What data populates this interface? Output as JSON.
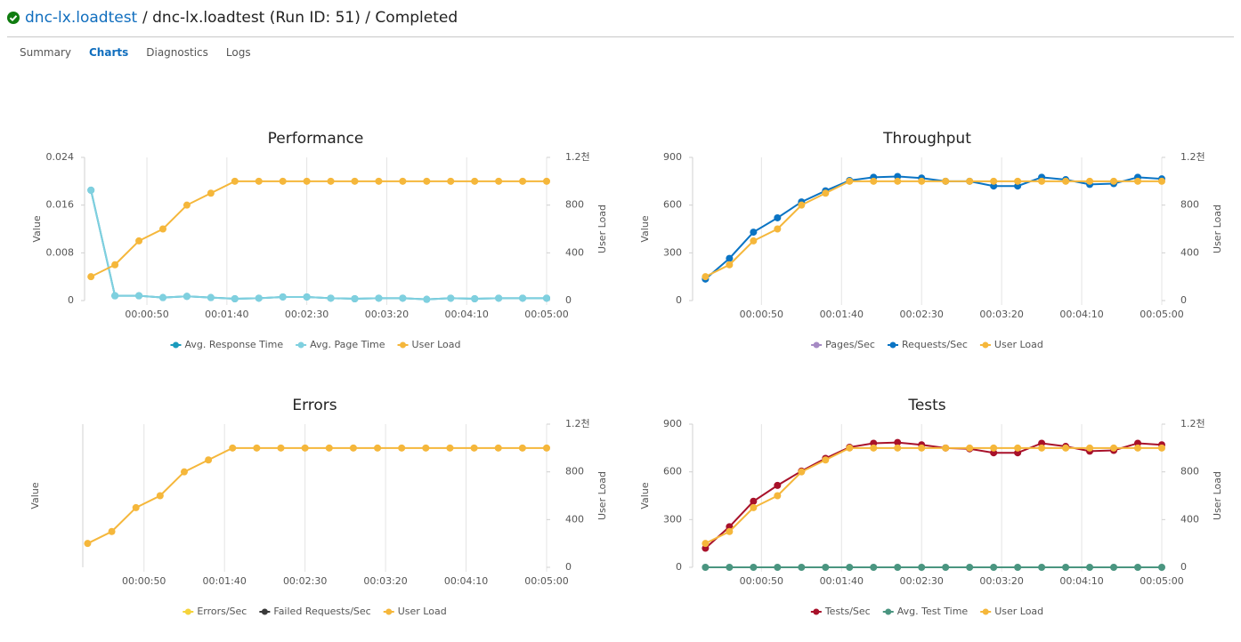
{
  "header": {
    "project": "dnc-lx.loadtest",
    "path": "/ dnc-lx.loadtest (Run ID: 51) / Completed"
  },
  "tabs": [
    "Summary",
    "Charts",
    "Diagnostics",
    "Logs"
  ],
  "active_tab": 1,
  "chart_data": [
    {
      "type": "line",
      "title": "Performance",
      "ylabel": "Value",
      "y2label": "User Load",
      "x": [
        15,
        30,
        45,
        60,
        75,
        90,
        105,
        120,
        135,
        150,
        165,
        180,
        195,
        210,
        225,
        240,
        255,
        270,
        285,
        300
      ],
      "xlim": [
        11,
        300
      ],
      "xticks": [
        {
          "value": 50,
          "label": "00:00:50"
        },
        {
          "value": 100,
          "label": "00:01:40"
        },
        {
          "value": 150,
          "label": "00:02:30"
        },
        {
          "value": 200,
          "label": "00:03:20"
        },
        {
          "value": 250,
          "label": "00:04:10"
        },
        {
          "value": 300,
          "label": "00:05:00"
        }
      ],
      "ylim": [
        0,
        0.024
      ],
      "yticks": [
        0,
        0.008,
        0.016,
        0.024
      ],
      "y2lim": [
        0,
        1200
      ],
      "y2ticks": [
        0,
        400,
        800,
        {
          "value": 1200,
          "label": "1.2천"
        }
      ],
      "series": [
        {
          "name": "Avg. Response Time",
          "color": "#1a9bbd",
          "values": [
            0.0185,
            0.0008,
            0.0008,
            0.0005,
            0.0007,
            0.0005,
            0.0003,
            0.0004,
            0.0006,
            0.0006,
            0.0004,
            0.0003,
            0.0004,
            0.0004,
            0.0002,
            0.0004,
            0.0003,
            0.0004,
            0.0004,
            0.0004
          ]
        },
        {
          "name": "Avg. Page Time",
          "color": "#7fd0df",
          "values": [
            0.0185,
            0.0008,
            0.0008,
            0.0005,
            0.0007,
            0.0005,
            0.0003,
            0.0004,
            0.0006,
            0.0006,
            0.0004,
            0.0003,
            0.0004,
            0.0004,
            0.0002,
            0.0004,
            0.0003,
            0.0004,
            0.0004,
            0.0004
          ]
        },
        {
          "name": "User Load",
          "color": "#f5b73b",
          "axis": "y2",
          "values": [
            200,
            300,
            500,
            600,
            800,
            900,
            1000,
            1000,
            1000,
            1000,
            1000,
            1000,
            1000,
            1000,
            1000,
            1000,
            1000,
            1000,
            1000,
            1000
          ]
        }
      ]
    },
    {
      "type": "line",
      "title": "Throughput",
      "ylabel": "Value",
      "y2label": "User Load",
      "x": [
        15,
        30,
        45,
        60,
        75,
        90,
        105,
        120,
        135,
        150,
        165,
        180,
        195,
        210,
        225,
        240,
        255,
        270,
        285,
        300
      ],
      "xlim": [
        7,
        300
      ],
      "xticks": [
        {
          "value": 50,
          "label": "00:00:50"
        },
        {
          "value": 100,
          "label": "00:01:40"
        },
        {
          "value": 150,
          "label": "00:02:30"
        },
        {
          "value": 200,
          "label": "00:03:20"
        },
        {
          "value": 250,
          "label": "00:04:10"
        },
        {
          "value": 300,
          "label": "00:05:00"
        }
      ],
      "ylim": [
        0,
        900
      ],
      "yticks": [
        0,
        300,
        600,
        900
      ],
      "y2lim": [
        0,
        1200
      ],
      "y2ticks": [
        0,
        400,
        800,
        {
          "value": 1200,
          "label": "1.2천"
        }
      ],
      "series": [
        {
          "name": "Pages/Sec",
          "color": "#a68ac4",
          "values": [
            null,
            null,
            null,
            null,
            null,
            null,
            null,
            null,
            null,
            null,
            null,
            null,
            null,
            null,
            null,
            null,
            null,
            null,
            null,
            null
          ]
        },
        {
          "name": "Requests/Sec",
          "color": "#0a74c4",
          "values": [
            135,
            265,
            430,
            520,
            620,
            690,
            755,
            775,
            780,
            770,
            750,
            750,
            720,
            720,
            775,
            760,
            730,
            735,
            775,
            765
          ]
        },
        {
          "name": "User Load",
          "color": "#f5b73b",
          "axis": "y2",
          "values": [
            200,
            300,
            500,
            600,
            800,
            900,
            1000,
            1000,
            1000,
            1000,
            1000,
            1000,
            1000,
            1000,
            1000,
            1000,
            1000,
            1000,
            1000,
            1000
          ]
        }
      ]
    },
    {
      "type": "line",
      "title": "Errors",
      "ylabel": "Value",
      "y2label": "User Load",
      "x": [
        15,
        30,
        45,
        60,
        75,
        90,
        105,
        120,
        135,
        150,
        165,
        180,
        195,
        210,
        225,
        240,
        255,
        270,
        285,
        300
      ],
      "xlim": [
        12,
        300
      ],
      "xticks": [
        {
          "value": 50,
          "label": "00:00:50"
        },
        {
          "value": 100,
          "label": "00:01:40"
        },
        {
          "value": 150,
          "label": "00:02:30"
        },
        {
          "value": 200,
          "label": "00:03:20"
        },
        {
          "value": 250,
          "label": "00:04:10"
        },
        {
          "value": 300,
          "label": "00:05:00"
        }
      ],
      "y2lim": [
        0,
        1200
      ],
      "y2ticks": [
        0,
        400,
        800,
        {
          "value": 1200,
          "label": "1.2천"
        }
      ],
      "series": [
        {
          "name": "Errors/Sec",
          "color": "#f5d33b",
          "values": [
            null,
            null,
            null,
            null,
            null,
            null,
            null,
            null,
            null,
            null,
            null,
            null,
            null,
            null,
            null,
            null,
            null,
            null,
            null,
            null
          ]
        },
        {
          "name": "Failed Requests/Sec",
          "color": "#3a3a3a",
          "values": [
            null,
            null,
            null,
            null,
            null,
            null,
            null,
            null,
            null,
            null,
            null,
            null,
            null,
            null,
            null,
            null,
            null,
            null,
            null,
            null
          ]
        },
        {
          "name": "User Load",
          "color": "#f5b73b",
          "axis": "y2",
          "values": [
            200,
            300,
            500,
            600,
            800,
            900,
            1000,
            1000,
            1000,
            1000,
            1000,
            1000,
            1000,
            1000,
            1000,
            1000,
            1000,
            1000,
            1000,
            1000
          ]
        }
      ]
    },
    {
      "type": "line",
      "title": "Tests",
      "ylabel": "Value",
      "y2label": "User Load",
      "x": [
        15,
        30,
        45,
        60,
        75,
        90,
        105,
        120,
        135,
        150,
        165,
        180,
        195,
        210,
        225,
        240,
        255,
        270,
        285,
        300
      ],
      "xlim": [
        7,
        300
      ],
      "xticks": [
        {
          "value": 50,
          "label": "00:00:50"
        },
        {
          "value": 100,
          "label": "00:01:40"
        },
        {
          "value": 150,
          "label": "00:02:30"
        },
        {
          "value": 200,
          "label": "00:03:20"
        },
        {
          "value": 250,
          "label": "00:04:10"
        },
        {
          "value": 300,
          "label": "00:05:00"
        }
      ],
      "ylim": [
        0,
        900
      ],
      "yticks": [
        0,
        300,
        600,
        900
      ],
      "y2lim": [
        0,
        1200
      ],
      "y2ticks": [
        0,
        400,
        800,
        {
          "value": 1200,
          "label": "1.2천"
        }
      ],
      "series": [
        {
          "name": "Tests/Sec",
          "color": "#a8112a",
          "values": [
            120,
            255,
            415,
            515,
            605,
            685,
            755,
            780,
            785,
            770,
            750,
            745,
            720,
            720,
            780,
            760,
            730,
            735,
            780,
            770
          ]
        },
        {
          "name": "Avg. Test Time",
          "color": "#4a9580",
          "values": [
            0,
            0,
            0,
            0,
            0,
            0,
            0,
            0,
            0,
            0,
            0,
            0,
            0,
            0,
            0,
            0,
            0,
            0,
            0,
            0
          ]
        },
        {
          "name": "User Load",
          "color": "#f5b73b",
          "axis": "y2",
          "values": [
            200,
            300,
            500,
            600,
            800,
            900,
            1000,
            1000,
            1000,
            1000,
            1000,
            1000,
            1000,
            1000,
            1000,
            1000,
            1000,
            1000,
            1000,
            1000
          ]
        }
      ]
    }
  ]
}
